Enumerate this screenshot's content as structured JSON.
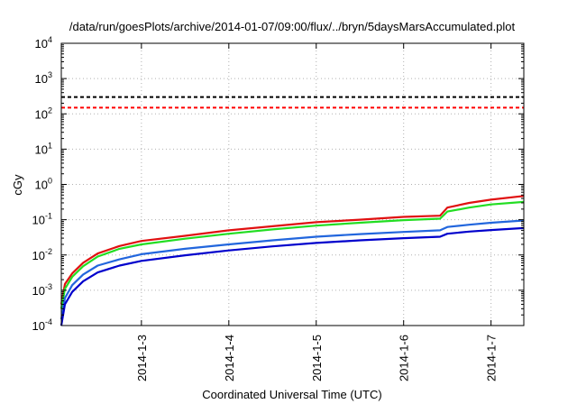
{
  "chart_data": {
    "type": "line",
    "title": "/data/run/goesPlots/archive/2014-01-07/09:00/flux/../bryn/5daysMarsAccumulated.plot",
    "xlabel": "Coordinated Universal Time (UTC)",
    "ylabel": "cGy",
    "x_unit": "days (UTC)",
    "xlim": [
      "2014-01-02T02:00",
      "2014-01-07T09:00"
    ],
    "ylim": [
      0.0001,
      10000
    ],
    "yscale": "log",
    "grid": true,
    "x_ticks": [
      {
        "date": "2014-01-03T00:00",
        "label": "2014-1-3"
      },
      {
        "date": "2014-01-04T00:00",
        "label": "2014-1-4"
      },
      {
        "date": "2014-01-05T00:00",
        "label": "2014-1-5"
      },
      {
        "date": "2014-01-06T00:00",
        "label": "2014-1-6"
      },
      {
        "date": "2014-01-07T00:00",
        "label": "2014-1-7"
      }
    ],
    "y_ticks": [
      {
        "value": 0.0001,
        "base": "10",
        "exp": "-4"
      },
      {
        "value": 0.001,
        "base": "10",
        "exp": "-3"
      },
      {
        "value": 0.01,
        "base": "10",
        "exp": "-2"
      },
      {
        "value": 0.1,
        "base": "10",
        "exp": "-1"
      },
      {
        "value": 1,
        "base": "10",
        "exp": "0"
      },
      {
        "value": 10,
        "base": "10",
        "exp": "1"
      },
      {
        "value": 100,
        "base": "10",
        "exp": "2"
      },
      {
        "value": 1000,
        "base": "10",
        "exp": "3"
      },
      {
        "value": 10000,
        "base": "10",
        "exp": "4"
      }
    ],
    "reference_lines": [
      {
        "value": 300,
        "color": "#000000",
        "style": "dashed"
      },
      {
        "value": 150,
        "color": "#ff0000",
        "style": "dashed"
      }
    ],
    "series": [
      {
        "color": "#e01010",
        "points": [
          [
            "2014-01-02T02:00",
            0.0004
          ],
          [
            "2014-01-02T03:00",
            0.0015
          ],
          [
            "2014-01-02T05:00",
            0.003
          ],
          [
            "2014-01-02T08:00",
            0.006
          ],
          [
            "2014-01-02T12:00",
            0.011
          ],
          [
            "2014-01-02T18:00",
            0.018
          ],
          [
            "2014-01-03T00:00",
            0.025
          ],
          [
            "2014-01-03T12:00",
            0.035
          ],
          [
            "2014-01-04T00:00",
            0.05
          ],
          [
            "2014-01-04T12:00",
            0.065
          ],
          [
            "2014-01-05T00:00",
            0.085
          ],
          [
            "2014-01-05T12:00",
            0.1
          ],
          [
            "2014-01-06T00:00",
            0.12
          ],
          [
            "2014-01-06T10:00",
            0.13
          ],
          [
            "2014-01-06T12:00",
            0.22
          ],
          [
            "2014-01-06T18:00",
            0.3
          ],
          [
            "2014-01-07T00:00",
            0.37
          ],
          [
            "2014-01-07T09:00",
            0.47
          ]
        ]
      },
      {
        "color": "#22dd22",
        "points": [
          [
            "2014-01-02T02:00",
            0.0003
          ],
          [
            "2014-01-02T03:00",
            0.0011
          ],
          [
            "2014-01-02T05:00",
            0.0024
          ],
          [
            "2014-01-02T08:00",
            0.0048
          ],
          [
            "2014-01-02T12:00",
            0.009
          ],
          [
            "2014-01-02T18:00",
            0.015
          ],
          [
            "2014-01-03T00:00",
            0.02
          ],
          [
            "2014-01-03T12:00",
            0.029
          ],
          [
            "2014-01-04T00:00",
            0.04
          ],
          [
            "2014-01-04T12:00",
            0.053
          ],
          [
            "2014-01-05T00:00",
            0.068
          ],
          [
            "2014-01-05T12:00",
            0.082
          ],
          [
            "2014-01-06T00:00",
            0.097
          ],
          [
            "2014-01-06T10:00",
            0.107
          ],
          [
            "2014-01-06T12:00",
            0.17
          ],
          [
            "2014-01-06T18:00",
            0.22
          ],
          [
            "2014-01-07T00:00",
            0.27
          ],
          [
            "2014-01-07T09:00",
            0.32
          ]
        ]
      },
      {
        "color": "#2266dd",
        "points": [
          [
            "2014-01-02T02:00",
            0.00015
          ],
          [
            "2014-01-02T03:00",
            0.0006
          ],
          [
            "2014-01-02T05:00",
            0.0014
          ],
          [
            "2014-01-02T08:00",
            0.0028
          ],
          [
            "2014-01-02T12:00",
            0.005
          ],
          [
            "2014-01-02T18:00",
            0.0075
          ],
          [
            "2014-01-03T00:00",
            0.0105
          ],
          [
            "2014-01-03T12:00",
            0.015
          ],
          [
            "2014-01-04T00:00",
            0.02
          ],
          [
            "2014-01-04T12:00",
            0.026
          ],
          [
            "2014-01-05T00:00",
            0.033
          ],
          [
            "2014-01-05T12:00",
            0.039
          ],
          [
            "2014-01-06T00:00",
            0.045
          ],
          [
            "2014-01-06T10:00",
            0.05
          ],
          [
            "2014-01-06T12:00",
            0.062
          ],
          [
            "2014-01-06T18:00",
            0.072
          ],
          [
            "2014-01-07T00:00",
            0.082
          ],
          [
            "2014-01-07T09:00",
            0.095
          ]
        ]
      },
      {
        "color": "#0000cc",
        "points": [
          [
            "2014-01-02T02:00",
            0.0001
          ],
          [
            "2014-01-02T03:00",
            0.0004
          ],
          [
            "2014-01-02T05:00",
            0.0009
          ],
          [
            "2014-01-02T08:00",
            0.0018
          ],
          [
            "2014-01-02T12:00",
            0.0032
          ],
          [
            "2014-01-02T18:00",
            0.005
          ],
          [
            "2014-01-03T00:00",
            0.0068
          ],
          [
            "2014-01-03T12:00",
            0.0098
          ],
          [
            "2014-01-04T00:00",
            0.0135
          ],
          [
            "2014-01-04T12:00",
            0.0175
          ],
          [
            "2014-01-05T00:00",
            0.022
          ],
          [
            "2014-01-05T12:00",
            0.026
          ],
          [
            "2014-01-06T00:00",
            0.03
          ],
          [
            "2014-01-06T10:00",
            0.033
          ],
          [
            "2014-01-06T12:00",
            0.04
          ],
          [
            "2014-01-06T18:00",
            0.046
          ],
          [
            "2014-01-07T00:00",
            0.051
          ],
          [
            "2014-01-07T09:00",
            0.058
          ]
        ]
      }
    ]
  }
}
